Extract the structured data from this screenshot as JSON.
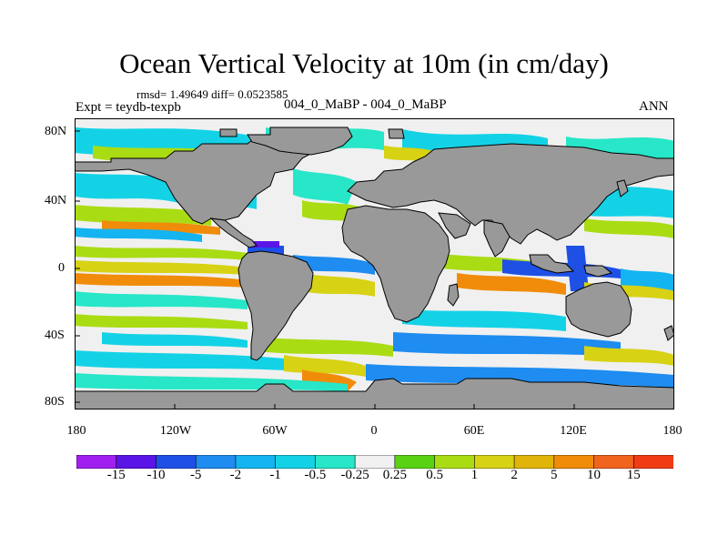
{
  "title": "Ocean Vertical Velocity at 10m (in cm/day)",
  "stats": "rmsd= 1.49649  diff= 0.0523585",
  "experiment": "Expt = teydb-texpb",
  "case_label": "004_0_MaBP - 004_0_MaBP",
  "season": "ANN",
  "map": {
    "lat_labels": [
      "80N",
      "40N",
      "0",
      "40S",
      "80S"
    ],
    "lon_labels": [
      "180",
      "120W",
      "60W",
      "0",
      "60E",
      "120E",
      "180"
    ],
    "land_color": "#999999"
  },
  "colorbar": {
    "colors": [
      "#a020f0",
      "#5a14e6",
      "#1e50e6",
      "#1e8cf0",
      "#14b4f0",
      "#14d2e6",
      "#28e6c8",
      "#f0f0f0",
      "#5ad214",
      "#aadc14",
      "#d7d214",
      "#e1b40a",
      "#f08c0a",
      "#f0641e",
      "#f03c14"
    ],
    "labels": [
      "-15",
      "-10",
      "-5",
      "-2",
      "-1",
      "-0.5",
      "-0.25",
      "0.25",
      "0.5",
      "1",
      "2",
      "5",
      "10",
      "15"
    ]
  }
}
